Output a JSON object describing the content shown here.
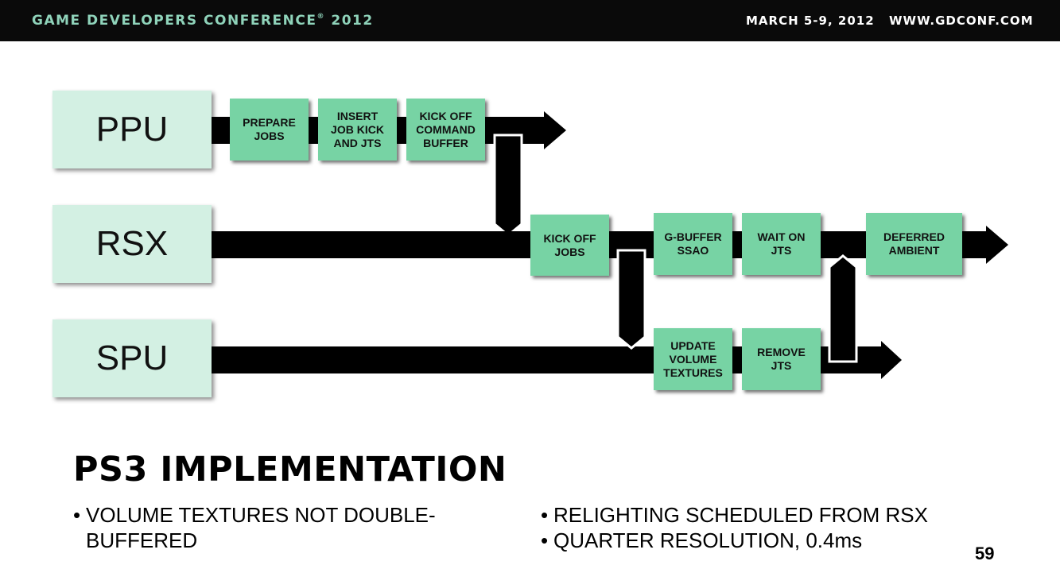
{
  "header": {
    "conference": "GAME DEVELOPERS CONFERENCE",
    "registered_mark": "®",
    "year": "2012",
    "dates": "MARCH 5-9, 2012",
    "url": "WWW.GDCONF.COM"
  },
  "lanes": {
    "ppu": "PPU",
    "rsx": "RSX",
    "spu": "SPU"
  },
  "tasks": {
    "prepare_jobs": "PREPARE\nJOBS",
    "insert_job_kick": "INSERT\nJOB KICK\nAND JTS",
    "kick_off_command_buffer": "KICK OFF\nCOMMAND\nBUFFER",
    "kick_off_jobs": "KICK OFF\nJOBS",
    "gbuffer_ssao": "G-BUFFER\nSSAO",
    "wait_on_jts": "WAIT ON\nJTS",
    "deferred_ambient": "DEFERRED\nAMBIENT",
    "update_volume_textures": "UPDATE\nVOLUME\nTEXTURES",
    "remove_jts": "REMOVE\nJTS"
  },
  "colors": {
    "lane_fill": "#d3f0e3",
    "task_fill": "#77d3a4",
    "header_bg": "#0a0a0a",
    "header_accent": "#8fd3ba"
  },
  "slide": {
    "title": "PS3 IMPLEMENTATION",
    "bullets_left": [
      "VOLUME TEXTURES NOT DOUBLE-",
      "BUFFERED"
    ],
    "bullets_right": [
      "RELIGHTING SCHEDULED FROM RSX",
      "QUARTER RESOLUTION, 0.4ms"
    ],
    "bullet_char": "•",
    "page_number": "59"
  }
}
